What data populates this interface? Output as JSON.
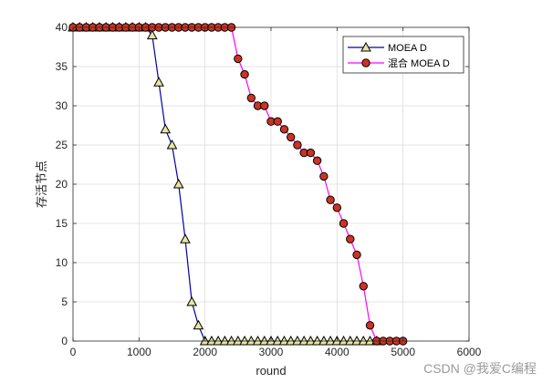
{
  "chart_data": {
    "type": "line",
    "xlabel": "round",
    "ylabel": "存活节点",
    "xlim": [
      0,
      6000
    ],
    "ylim": [
      0,
      40
    ],
    "xticks": [
      0,
      1000,
      2000,
      3000,
      4000,
      5000,
      6000
    ],
    "yticks": [
      0,
      5,
      10,
      15,
      20,
      25,
      30,
      35,
      40
    ],
    "grid": true,
    "legend_position": "top-right",
    "series": [
      {
        "name": "MOEA D",
        "color": "#0000aa",
        "marker": "triangle",
        "marker_fill": "#e6e6a0",
        "x": [
          0,
          100,
          200,
          300,
          400,
          500,
          600,
          700,
          800,
          900,
          1000,
          1100,
          1200,
          1300,
          1400,
          1500,
          1600,
          1700,
          1800,
          1900,
          2000,
          2100,
          2200,
          2300,
          2400,
          2500,
          2600,
          2700,
          2800,
          2900,
          3000,
          3100,
          3200,
          3300,
          3400,
          3500,
          3600,
          3700,
          3800,
          3900,
          4000,
          4100,
          4200,
          4300,
          4400,
          4500,
          4600
        ],
        "y": [
          40,
          40,
          40,
          40,
          40,
          40,
          40,
          40,
          40,
          40,
          40,
          40,
          39,
          33,
          27,
          25,
          20,
          13,
          5,
          2,
          0,
          0,
          0,
          0,
          0,
          0,
          0,
          0,
          0,
          0,
          0,
          0,
          0,
          0,
          0,
          0,
          0,
          0,
          0,
          0,
          0,
          0,
          0,
          0,
          0,
          0,
          0
        ]
      },
      {
        "name": "混合 MOEA D",
        "color": "#ff00ff",
        "marker": "circle",
        "marker_fill": "#cc3322",
        "x": [
          0,
          100,
          200,
          300,
          400,
          500,
          600,
          700,
          800,
          900,
          1000,
          1100,
          1200,
          1300,
          1400,
          1500,
          1600,
          1700,
          1800,
          1900,
          2000,
          2100,
          2200,
          2300,
          2400,
          2500,
          2600,
          2700,
          2800,
          2900,
          3000,
          3100,
          3200,
          3300,
          3400,
          3500,
          3600,
          3700,
          3800,
          3900,
          4000,
          4100,
          4200,
          4300,
          4400,
          4500,
          4600,
          4700,
          4800,
          4900,
          5000
        ],
        "y": [
          40,
          40,
          40,
          40,
          40,
          40,
          40,
          40,
          40,
          40,
          40,
          40,
          40,
          40,
          40,
          40,
          40,
          40,
          40,
          40,
          40,
          40,
          40,
          40,
          40,
          36,
          34,
          31,
          30,
          30,
          28,
          28,
          27,
          26,
          25,
          24,
          24,
          23,
          21,
          18,
          17,
          15,
          13,
          11,
          7,
          2,
          0,
          0,
          0,
          0,
          0
        ]
      }
    ]
  },
  "watermark": "CSDN @我爱C编程"
}
